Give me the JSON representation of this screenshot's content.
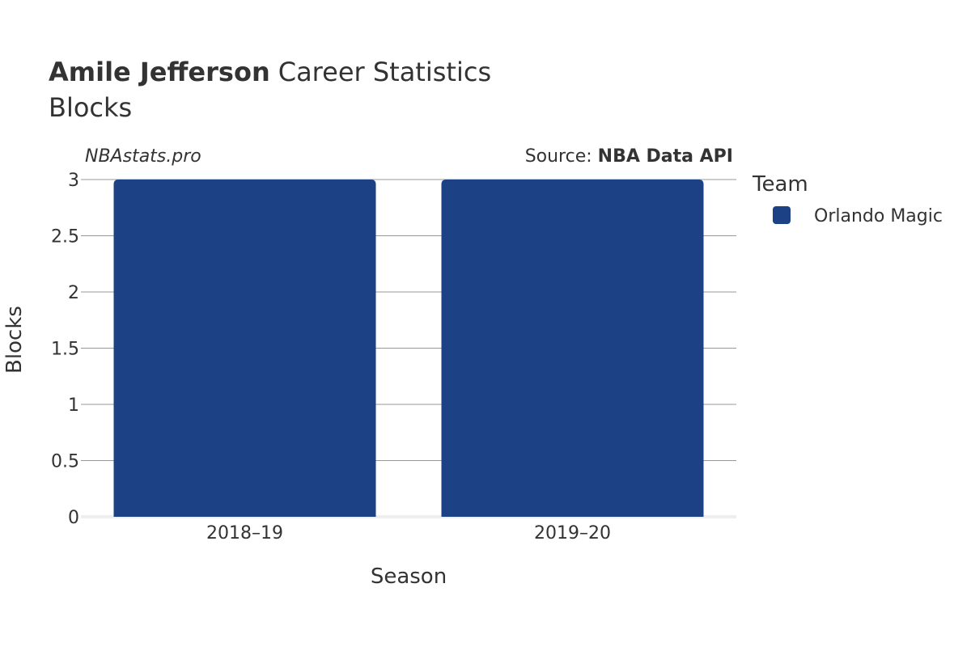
{
  "chart_data": {
    "type": "bar",
    "title_player": "Amile Jefferson",
    "title_suffix": "Career Statistics",
    "subtitle": "Blocks",
    "watermark": "NBAstats.pro",
    "source_prefix": "Source: ",
    "source_name": "NBA Data API",
    "xlabel": "Season",
    "ylabel": "Blocks",
    "categories": [
      "2018–19",
      "2019–20"
    ],
    "series": [
      {
        "name": "Orlando Magic",
        "values": [
          3,
          3
        ],
        "color": "#1d4185"
      }
    ],
    "ylim": [
      0,
      3
    ],
    "yticks": [
      0,
      0.5,
      1,
      1.5,
      2,
      2.5,
      3
    ],
    "ytick_labels": [
      "0",
      "0.5",
      "1",
      "1.5",
      "2",
      "2.5",
      "3"
    ],
    "legend_title": "Team",
    "legend_position": "right",
    "grid": true
  }
}
